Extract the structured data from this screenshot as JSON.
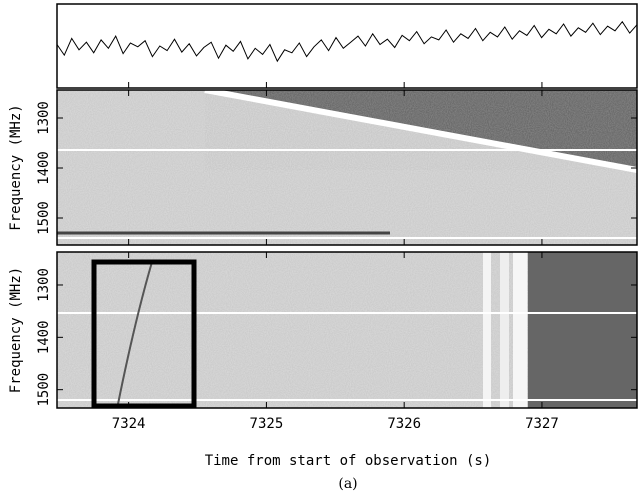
{
  "chart_data": {
    "type": "dynamic-spectrum",
    "xlabel": "Time from start of observation (s)",
    "caption": "(a)",
    "xlim": [
      7323.48,
      7327.69
    ],
    "xticks": [
      7324,
      7325,
      7326,
      7327
    ],
    "timeseries": {
      "type": "line",
      "color": "#000000",
      "ylim": [
        0,
        100
      ],
      "values": [
        52,
        38,
        60,
        45,
        55,
        41,
        58,
        47,
        63,
        40,
        54,
        49,
        57,
        36,
        50,
        44,
        59,
        42,
        53,
        37,
        48,
        55,
        34,
        51,
        43,
        56,
        33,
        47,
        39,
        52,
        30,
        45,
        41,
        54,
        36,
        49,
        58,
        44,
        61,
        47,
        55,
        63,
        50,
        66,
        52,
        59,
        48,
        64,
        57,
        69,
        53,
        62,
        58,
        71,
        55,
        66,
        60,
        73,
        57,
        68,
        62,
        75,
        59,
        70,
        64,
        77,
        61,
        72,
        66,
        79,
        63,
        74,
        68,
        80,
        65,
        76,
        70,
        82,
        67,
        78
      ]
    },
    "panels": [
      {
        "ylabel": "Frequency (MHz)",
        "ylim": [
          1244,
          1554
        ],
        "yticks": [
          1300,
          1400,
          1500
        ]
      },
      {
        "ylabel": "Frequency (MHz)",
        "ylim": [
          1237,
          1535
        ],
        "yticks": [
          1300,
          1400,
          1500
        ]
      }
    ]
  }
}
